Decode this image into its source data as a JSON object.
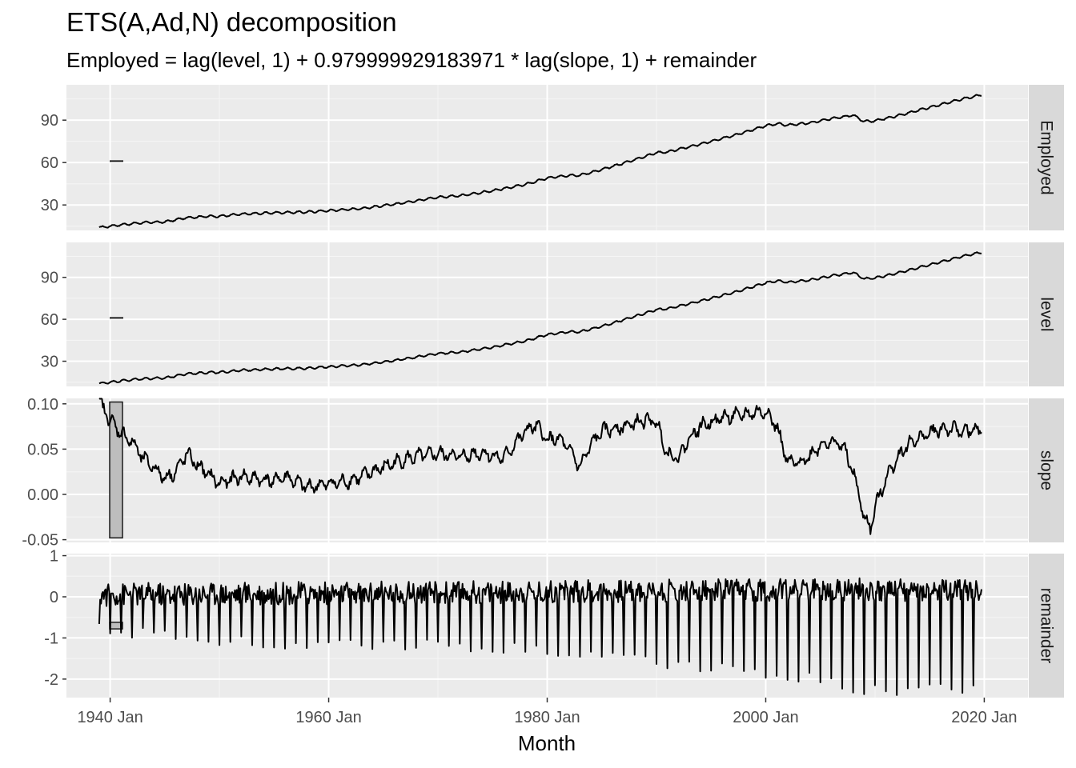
{
  "chart_data": {
    "type": "line",
    "title": "ETS(A,Ad,N) decomposition",
    "subtitle": "Employed = lag(level, 1) + 0.979999929183971 * lag(slope, 1) + remainder",
    "xlabel": "Month",
    "x_range": [
      "1936-01",
      "2024-01"
    ],
    "x_ticks": [
      {
        "date": 1940,
        "label": "1940 Jan"
      },
      {
        "date": 1960,
        "label": "1960 Jan"
      },
      {
        "date": 1980,
        "label": "1980 Jan"
      },
      {
        "date": 2000,
        "label": "2000 Jan"
      },
      {
        "date": 2020,
        "label": "2020 Jan"
      }
    ],
    "grid": true,
    "panels": [
      {
        "strip": "Employed",
        "ylim": [
          12,
          115
        ],
        "y_ticks": [
          {
            "value": 30,
            "label": "30"
          },
          {
            "value": 60,
            "label": "60"
          },
          {
            "value": 90,
            "label": "90"
          }
        ],
        "scale_bar": [
          60.5,
          61.5
        ],
        "series": {
          "name": "Employed",
          "points": [
            [
              1939.0,
              14
            ],
            [
              1941,
              16
            ],
            [
              1943,
              17.5
            ],
            [
              1945,
              18
            ],
            [
              1947,
              21
            ],
            [
              1949,
              22
            ],
            [
              1950,
              22
            ],
            [
              1952,
              23.5
            ],
            [
              1955,
              24.5
            ],
            [
              1958,
              25
            ],
            [
              1960,
              26
            ],
            [
              1963,
              27.5
            ],
            [
              1966,
              30.5
            ],
            [
              1970,
              35.5
            ],
            [
              1972,
              36.5
            ],
            [
              1975,
              40
            ],
            [
              1978,
              44.5
            ],
            [
              1980,
              49
            ],
            [
              1982,
              51
            ],
            [
              1983,
              51
            ],
            [
              1985,
              55
            ],
            [
              1988,
              62
            ],
            [
              1990,
              67
            ],
            [
              1991,
              67.5
            ],
            [
              1994,
              73
            ],
            [
              1997,
              79
            ],
            [
              2000,
              86
            ],
            [
              2001,
              87.5
            ],
            [
              2002,
              86.5
            ],
            [
              2004,
              88
            ],
            [
              2006,
              91
            ],
            [
              2008,
              93.5
            ],
            [
              2009,
              89
            ],
            [
              2010,
              89.5
            ],
            [
              2012,
              93
            ],
            [
              2015,
              99
            ],
            [
              2018,
              105
            ],
            [
              2019.8,
              108
            ]
          ],
          "seasonal_amplitude": 0.7
        }
      },
      {
        "strip": "level",
        "ylim": [
          12,
          115
        ],
        "y_ticks": [
          {
            "value": 30,
            "label": "30"
          },
          {
            "value": 60,
            "label": "60"
          },
          {
            "value": 90,
            "label": "90"
          }
        ],
        "scale_bar": [
          60.5,
          61.5
        ],
        "series": {
          "name": "level",
          "points": [
            [
              1939.0,
              14
            ],
            [
              1941,
              16
            ],
            [
              1943,
              17.5
            ],
            [
              1945,
              18
            ],
            [
              1947,
              21
            ],
            [
              1949,
              22
            ],
            [
              1950,
              22
            ],
            [
              1952,
              23.5
            ],
            [
              1955,
              24.5
            ],
            [
              1958,
              25
            ],
            [
              1960,
              26
            ],
            [
              1963,
              27.5
            ],
            [
              1966,
              30.5
            ],
            [
              1970,
              35.5
            ],
            [
              1972,
              36.5
            ],
            [
              1975,
              40
            ],
            [
              1978,
              44.5
            ],
            [
              1980,
              49
            ],
            [
              1982,
              51
            ],
            [
              1983,
              51
            ],
            [
              1985,
              55
            ],
            [
              1988,
              62
            ],
            [
              1990,
              67
            ],
            [
              1991,
              67.5
            ],
            [
              1994,
              73
            ],
            [
              1997,
              79
            ],
            [
              2000,
              86
            ],
            [
              2001,
              87.5
            ],
            [
              2002,
              86.5
            ],
            [
              2004,
              88
            ],
            [
              2006,
              91
            ],
            [
              2008,
              93.5
            ],
            [
              2009,
              89
            ],
            [
              2010,
              89.5
            ],
            [
              2012,
              93
            ],
            [
              2015,
              99
            ],
            [
              2018,
              105
            ],
            [
              2019.8,
              108
            ]
          ],
          "seasonal_amplitude": 0.7
        }
      },
      {
        "strip": "slope",
        "ylim": [
          -0.053,
          0.106
        ],
        "y_ticks": [
          {
            "value": -0.05,
            "label": "-0.05"
          },
          {
            "value": 0.0,
            "label": "0.00"
          },
          {
            "value": 0.05,
            "label": "0.05"
          },
          {
            "value": 0.1,
            "label": "0.10"
          }
        ],
        "scale_bar": [
          -0.048,
          0.102
        ],
        "series": {
          "name": "slope",
          "points": [
            [
              1939.0,
              0.102
            ],
            [
              1940,
              0.082
            ],
            [
              1941,
              0.068
            ],
            [
              1942,
              0.058
            ],
            [
              1943,
              0.04
            ],
            [
              1944,
              0.03
            ],
            [
              1945,
              0.018
            ],
            [
              1946,
              0.025
            ],
            [
              1947,
              0.045
            ],
            [
              1948,
              0.032
            ],
            [
              1949,
              0.022
            ],
            [
              1950,
              0.012
            ],
            [
              1952,
              0.02
            ],
            [
              1953,
              0.018
            ],
            [
              1955,
              0.015
            ],
            [
              1956,
              0.02
            ],
            [
              1958,
              0.008
            ],
            [
              1960,
              0.012
            ],
            [
              1962,
              0.015
            ],
            [
              1964,
              0.025
            ],
            [
              1966,
              0.035
            ],
            [
              1968,
              0.042
            ],
            [
              1970,
              0.045
            ],
            [
              1972,
              0.042
            ],
            [
              1974,
              0.046
            ],
            [
              1976,
              0.04
            ],
            [
              1977,
              0.055
            ],
            [
              1978,
              0.07
            ],
            [
              1979,
              0.076
            ],
            [
              1980,
              0.06
            ],
            [
              1981,
              0.062
            ],
            [
              1982,
              0.05
            ],
            [
              1983,
              0.03
            ],
            [
              1984,
              0.055
            ],
            [
              1985,
              0.07
            ],
            [
              1987,
              0.075
            ],
            [
              1989,
              0.082
            ],
            [
              1990,
              0.08
            ],
            [
              1991,
              0.045
            ],
            [
              1992,
              0.04
            ],
            [
              1993,
              0.062
            ],
            [
              1994,
              0.075
            ],
            [
              1996,
              0.085
            ],
            [
              1998,
              0.088
            ],
            [
              2000,
              0.092
            ],
            [
              2001,
              0.075
            ],
            [
              2002,
              0.035
            ],
            [
              2003,
              0.035
            ],
            [
              2004,
              0.042
            ],
            [
              2005,
              0.055
            ],
            [
              2006,
              0.058
            ],
            [
              2007,
              0.055
            ],
            [
              2008,
              0.025
            ],
            [
              2009,
              -0.025
            ],
            [
              2009.6,
              -0.038
            ],
            [
              2010,
              -0.015
            ],
            [
              2011,
              0.018
            ],
            [
              2012,
              0.04
            ],
            [
              2013,
              0.055
            ],
            [
              2014,
              0.062
            ],
            [
              2015,
              0.068
            ],
            [
              2016,
              0.072
            ],
            [
              2017,
              0.072
            ],
            [
              2018,
              0.07
            ],
            [
              2019,
              0.07
            ],
            [
              2019.8,
              0.07
            ]
          ],
          "seasonal_amplitude": 0.009
        }
      },
      {
        "strip": "remainder",
        "ylim": [
          -2.45,
          1.05
        ],
        "y_ticks": [
          {
            "value": -2,
            "label": "-2"
          },
          {
            "value": -1,
            "label": "-1"
          },
          {
            "value": 0,
            "label": "0"
          },
          {
            "value": 1,
            "label": "1"
          }
        ],
        "scale_bar": [
          -0.78,
          -0.62
        ],
        "series": {
          "name": "remainder",
          "points": [
            [
              1939.0,
              0.1
            ],
            [
              1950,
              0.15
            ],
            [
              1970,
              0.2
            ],
            [
              1990,
              0.3
            ],
            [
              2010,
              0.35
            ],
            [
              2019.8,
              0.3
            ]
          ],
          "seasonal_amplitude": 0.28,
          "spike_depths": [
            [
              1939.0,
              -0.8
            ],
            [
              1955,
              -1.15
            ],
            [
              1970,
              -1.2
            ],
            [
              1985,
              -1.35
            ],
            [
              1990,
              -1.6
            ],
            [
              2000,
              -1.85
            ],
            [
              2005,
              -2.0
            ],
            [
              2010,
              -2.3
            ],
            [
              2015,
              -2.2
            ],
            [
              2019.8,
              -2.2
            ]
          ]
        }
      }
    ]
  }
}
